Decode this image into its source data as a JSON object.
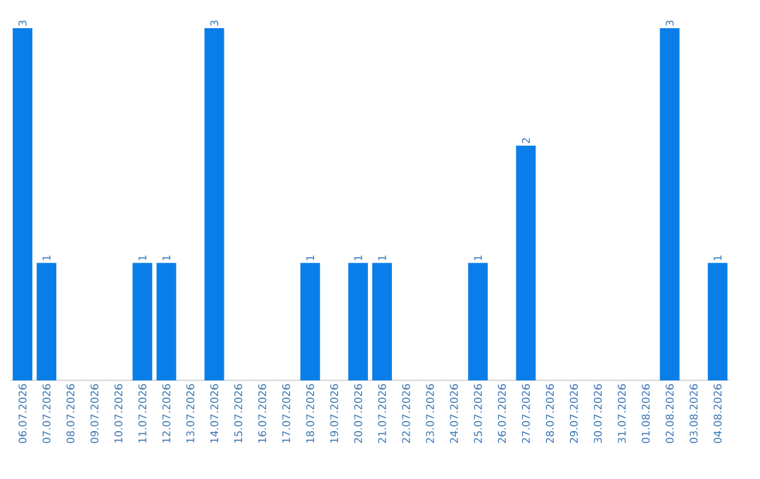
{
  "chart_data": {
    "type": "bar",
    "categories": [
      "06.07.2026",
      "07.07.2026",
      "08.07.2026",
      "09.07.2026",
      "10.07.2026",
      "11.07.2026",
      "12.07.2026",
      "13.07.2026",
      "14.07.2026",
      "15.07.2026",
      "16.07.2026",
      "17.07.2026",
      "18.07.2026",
      "19.07.2026",
      "20.07.2026",
      "21.07.2026",
      "22.07.2026",
      "23.07.2026",
      "24.07.2026",
      "25.07.2026",
      "26.07.2026",
      "27.07.2026",
      "28.07.2026",
      "29.07.2026",
      "30.07.2026",
      "31.07.2026",
      "01.08.2026",
      "02.08.2026",
      "03.08.2026",
      "04.08.2026"
    ],
    "values": [
      3,
      1,
      0,
      0,
      0,
      1,
      1,
      0,
      3,
      0,
      0,
      0,
      1,
      0,
      1,
      1,
      0,
      0,
      0,
      1,
      0,
      2,
      0,
      0,
      0,
      0,
      0,
      3,
      0,
      1
    ],
    "value_labels": [
      "3",
      "1",
      null,
      null,
      null,
      "1",
      "1",
      null,
      "3",
      null,
      null,
      null,
      "1",
      null,
      "1",
      "1",
      null,
      null,
      null,
      "1",
      null,
      "2",
      null,
      null,
      null,
      null,
      null,
      "3",
      null,
      "1"
    ],
    "color": "#0a7ee8",
    "ylim": [
      0,
      3
    ],
    "tick_labels": "x",
    "grid": false
  }
}
